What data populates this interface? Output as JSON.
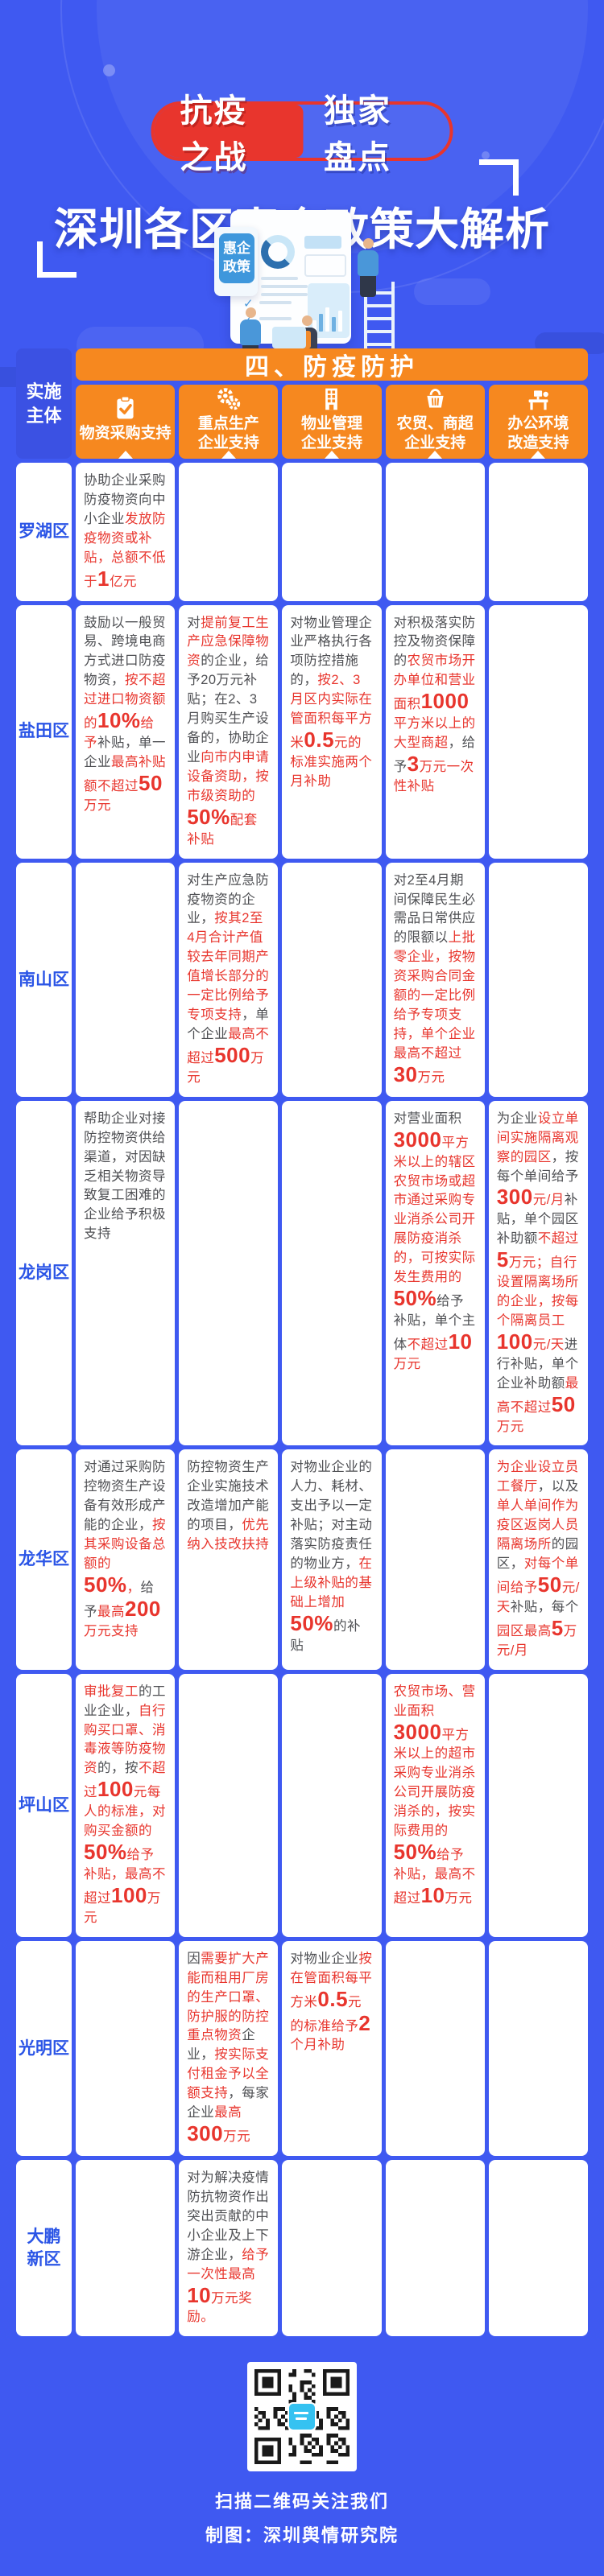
{
  "header": {
    "badge_left": "抗疫之战",
    "badge_right": "独家盘点",
    "title": "深圳各区惠企政策大解析",
    "board_sign": "惠企\n政策"
  },
  "table": {
    "section_title": "四、防疫防护",
    "corner_label": "实施\n主体",
    "columns": [
      {
        "icon": "clipboard-check-icon",
        "label": "物资采购支持"
      },
      {
        "icon": "gears-icon",
        "label": "重点生产\n企业支持"
      },
      {
        "icon": "building-icon",
        "label": "物业管理\n企业支持"
      },
      {
        "icon": "basket-icon",
        "label": "农贸、商超\n企业支持"
      },
      {
        "icon": "office-desk-icon",
        "label": "办公环境\n改造支持"
      }
    ],
    "rows": [
      {
        "district": "罗湖区",
        "cells": [
          [
            [
              "d",
              "协助企业采购防疫物资向中小企业"
            ],
            [
              "r",
              "发放防疫物资或补贴，总额不低于"
            ],
            [
              "rb",
              "1"
            ],
            [
              "r",
              "亿元"
            ]
          ],
          [],
          [],
          [],
          []
        ]
      },
      {
        "district": "盐田区",
        "cells": [
          [
            [
              "d",
              "鼓励以一般贸易、跨境电商方式进口防疫物资，"
            ],
            [
              "r",
              "按不超过进口物资额的"
            ],
            [
              "rb",
              "10%"
            ],
            [
              "r",
              "给予"
            ],
            [
              "d",
              "补贴，单一企业"
            ],
            [
              "r",
              "最高补贴额不超过"
            ],
            [
              "rb",
              "50"
            ],
            [
              "r",
              "万元"
            ]
          ],
          [
            [
              "d",
              "对"
            ],
            [
              "r",
              "提前复工生产应急保障物资"
            ],
            [
              "d",
              "的企业，给予20万元补贴；在2、3月购买生产设备的，协助企业"
            ],
            [
              "r",
              "向市内申请设备资助，按市级资助的"
            ],
            [
              "rb",
              "50%"
            ],
            [
              "r",
              "配套补贴"
            ]
          ],
          [
            [
              "d",
              "对物业管理企业严格执行各项防控措施的，"
            ],
            [
              "r",
              "按2、3月区内实际在管面积每平方米"
            ],
            [
              "rb",
              "0.5"
            ],
            [
              "r",
              "元的标准实施两个月补助"
            ]
          ],
          [
            [
              "d",
              "对积极落实防控及物资保障的"
            ],
            [
              "r",
              "农贸市场开办单位和营业面积"
            ],
            [
              "rb",
              "1000"
            ],
            [
              "r",
              "平方米以上的大型商超"
            ],
            [
              "d",
              "，给予"
            ],
            [
              "rb",
              "3"
            ],
            [
              "r",
              "万元一次性补贴"
            ]
          ],
          []
        ]
      },
      {
        "district": "南山区",
        "cells": [
          [],
          [
            [
              "d",
              "对生产应急防疫物资的企业，"
            ],
            [
              "r",
              "按其2至4月合计产值较去年同期产值增长部分的一定比例给予专项支持"
            ],
            [
              "d",
              "，单个企业"
            ],
            [
              "r",
              "最高不超过"
            ],
            [
              "rb",
              "500"
            ],
            [
              "r",
              "万元"
            ]
          ],
          [],
          [
            [
              "d",
              "对2至4月期间保障民生必需品日常供应的限额以"
            ],
            [
              "r",
              "上批零企业，按物资采购合同金额的一定比例给予专项支持，单个企业最高不超过"
            ],
            [
              "rb",
              "30"
            ],
            [
              "r",
              "万元"
            ]
          ],
          []
        ]
      },
      {
        "district": "龙岗区",
        "cells": [
          [
            [
              "d",
              "帮助企业对接防控物资供给渠道，对因缺乏相关物资导致复工困难的企业给予积极支持"
            ]
          ],
          [],
          [],
          [
            [
              "d",
              "对营业面积"
            ],
            [
              "rb",
              "3000"
            ],
            [
              "r",
              "平方米以上的辖区农贸市场或超市通过采购专业消杀公司开展防疫消杀的，可按实际发生费用的"
            ],
            [
              "rb",
              "50%"
            ],
            [
              "d",
              "给予补贴，单个主体"
            ],
            [
              "r",
              "不超过"
            ],
            [
              "rb",
              "10"
            ],
            [
              "r",
              "万元"
            ]
          ],
          [
            [
              "d",
              "为企业"
            ],
            [
              "r",
              "设立单间实施隔离观察的园区"
            ],
            [
              "d",
              "，按每个单间给予"
            ],
            [
              "rb",
              "300"
            ],
            [
              "r",
              "元/月"
            ],
            [
              "d",
              "补贴，单个园区补助额"
            ],
            [
              "r",
              "不超过"
            ],
            [
              "rb",
              "5"
            ],
            [
              "r",
              "万元；自行设置隔离场所的企业，按每个隔离员工"
            ],
            [
              "rb",
              "100"
            ],
            [
              "r",
              "元/天"
            ],
            [
              "d",
              "进行补贴，单个企业补助额"
            ],
            [
              "r",
              "最高不超过"
            ],
            [
              "rb",
              "50"
            ],
            [
              "r",
              "万元"
            ]
          ]
        ]
      },
      {
        "district": "龙华区",
        "cells": [
          [
            [
              "d",
              "对通过采购防控物资生产设备有效形成产能的企业，"
            ],
            [
              "r",
              "按其采购设备总额的"
            ],
            [
              "rb",
              "50%"
            ],
            [
              "r",
              "，"
            ],
            [
              "d",
              "给予"
            ],
            [
              "r",
              "最高"
            ],
            [
              "rb",
              "200"
            ],
            [
              "r",
              "万元支持"
            ]
          ],
          [
            [
              "d",
              "防控物资生产企业实施技术改造增加产能的项目，"
            ],
            [
              "r",
              "优先纳入技改扶持"
            ]
          ],
          [
            [
              "d",
              "对物业企业的人力、耗材、支出予以一定补贴；对主动落实防疫责任的物业方，"
            ],
            [
              "r",
              "在上级补贴的基础上增加"
            ],
            [
              "rb",
              "50%"
            ],
            [
              "d",
              "的补贴"
            ]
          ],
          [],
          [
            [
              "r",
              "为企业设立员工餐厅"
            ],
            [
              "d",
              "，以及"
            ],
            [
              "r",
              "单人单间作为疫区返岗人员隔离场所"
            ],
            [
              "d",
              "的园区，"
            ],
            [
              "r",
              "对每个单间给予"
            ],
            [
              "rb",
              "50"
            ],
            [
              "r",
              "元/天"
            ],
            [
              "d",
              "补贴，每个"
            ],
            [
              "r",
              "园区最高"
            ],
            [
              "rb",
              "5"
            ],
            [
              "r",
              "万元/月"
            ]
          ]
        ]
      },
      {
        "district": "坪山区",
        "cells": [
          [
            [
              "r",
              "审批复工"
            ],
            [
              "d",
              "的工业企业，"
            ],
            [
              "r",
              "自行购买口罩、消毒液等防疫物资"
            ],
            [
              "d",
              "的，按"
            ],
            [
              "r",
              "不超过"
            ],
            [
              "rb",
              "100"
            ],
            [
              "r",
              "元每人的标准，对购买金额的"
            ],
            [
              "rb",
              "50%"
            ],
            [
              "r",
              "给予补贴，最高不超过"
            ],
            [
              "rb",
              "100"
            ],
            [
              "r",
              "万元"
            ]
          ],
          [],
          [],
          [
            [
              "r",
              "农贸市场、营业面积"
            ],
            [
              "rb",
              "3000"
            ],
            [
              "r",
              "平方米以上的超市采购专业消杀公司开展防疫消杀的，按实际费用的"
            ],
            [
              "rb",
              "50%"
            ],
            [
              "r",
              "给予补贴，最高不超过"
            ],
            [
              "rb",
              "10"
            ],
            [
              "r",
              "万元"
            ]
          ],
          []
        ]
      },
      {
        "district": "光明区",
        "cells": [
          [],
          [
            [
              "d",
              "因"
            ],
            [
              "r",
              "需要扩大产能而租用厂房的生产口罩、防护服的防控重点物资"
            ],
            [
              "d",
              "企业，"
            ],
            [
              "r",
              "按实际支付租金予以全额支持"
            ],
            [
              "d",
              "，每家企业"
            ],
            [
              "r",
              "最高"
            ],
            [
              "rb",
              "300"
            ],
            [
              "r",
              "万元"
            ]
          ],
          [
            [
              "d",
              "对物业企业"
            ],
            [
              "r",
              "按在管面积每平方米"
            ],
            [
              "rb",
              "0.5"
            ],
            [
              "r",
              "元的标准给予"
            ],
            [
              "rb",
              "2"
            ],
            [
              "r",
              "个月补助"
            ]
          ],
          [],
          []
        ]
      },
      {
        "district": "大鹏\n新区",
        "cells": [
          [],
          [
            [
              "d",
              "对为解决疫情防抗物资作出突出贡献的中小企业及上下游企业，"
            ],
            [
              "r",
              "给予一次性最高"
            ],
            [
              "rb",
              "10"
            ],
            [
              "r",
              "万元奖励。"
            ]
          ],
          [],
          [],
          []
        ]
      }
    ]
  },
  "footer": {
    "scan_label": "扫描二维码关注我们",
    "credit_label": "制图：深圳舆情研究院"
  }
}
